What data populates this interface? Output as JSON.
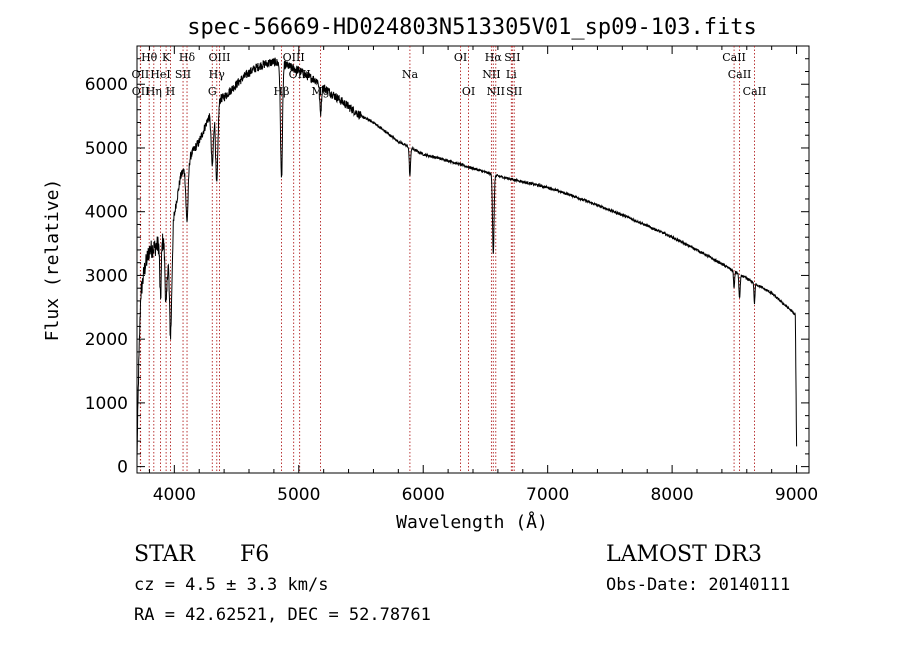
{
  "chart_data": {
    "type": "line",
    "title": "spec-56669-HD024803N513305V01_sp09-103.fits",
    "xlabel": "Wavelength (Å)",
    "ylabel": "Flux (relative)",
    "xlim": [
      3700,
      9100
    ],
    "ylim": [
      -100,
      6600
    ],
    "xticks": [
      4000,
      5000,
      6000,
      7000,
      8000,
      9000
    ],
    "xtick_labels": [
      "4000",
      "5000",
      "6000",
      "7000",
      "8000",
      "9000"
    ],
    "yticks": [
      0,
      1000,
      2000,
      3000,
      4000,
      5000,
      6000
    ],
    "ytick_labels": [
      "0",
      "1000",
      "2000",
      "3000",
      "4000",
      "5000",
      "6000"
    ],
    "grid": false,
    "continuum": {
      "x": [
        3700,
        3712,
        3730,
        3760,
        3800,
        3850,
        3900,
        3950,
        4000,
        4050,
        4100,
        4150,
        4200,
        4250,
        4300,
        4350,
        4400,
        4450,
        4500,
        4550,
        4600,
        4650,
        4700,
        4750,
        4800,
        4850,
        4900,
        4950,
        5000,
        5050,
        5100,
        5150,
        5200,
        5300,
        5400,
        5500,
        5600,
        5700,
        5800,
        5900,
        6000,
        6200,
        6400,
        6600,
        6800,
        7000,
        7200,
        7400,
        7600,
        7800,
        8000,
        8200,
        8400,
        8600,
        8800,
        8950,
        8990,
        9000
      ],
      "flux": [
        100,
        1400,
        2700,
        3100,
        3400,
        3450,
        3550,
        3500,
        3950,
        4550,
        4750,
        4950,
        5100,
        5350,
        5600,
        5750,
        5800,
        5900,
        6000,
        6100,
        6180,
        6250,
        6300,
        6330,
        6350,
        6330,
        6300,
        6250,
        6220,
        6150,
        6100,
        6050,
        5950,
        5800,
        5650,
        5500,
        5400,
        5250,
        5100,
        5000,
        4900,
        4800,
        4680,
        4560,
        4470,
        4380,
        4250,
        4100,
        3950,
        3780,
        3600,
        3400,
        3180,
        2950,
        2720,
        2460,
        2380,
        300
      ]
    },
    "absorption": [
      {
        "name": "H-epsilon/CaII H",
        "center": 3970,
        "depth": 1600,
        "width": 10
      },
      {
        "name": "CaII K",
        "center": 3934,
        "depth": 1000,
        "width": 8
      },
      {
        "name": "H8",
        "center": 3889,
        "depth": 900,
        "width": 6
      },
      {
        "name": "H-delta",
        "center": 4102,
        "depth": 900,
        "width": 9
      },
      {
        "name": "G band",
        "center": 4305,
        "depth": 900,
        "width": 9
      },
      {
        "name": "H-gamma",
        "center": 4341,
        "depth": 1300,
        "width": 9
      },
      {
        "name": "H-beta",
        "center": 4861,
        "depth": 1800,
        "width": 8
      },
      {
        "name": "Mg b",
        "center": 5175,
        "depth": 450,
        "width": 7
      },
      {
        "name": "Na D",
        "center": 5893,
        "depth": 450,
        "width": 5
      },
      {
        "name": "H-alpha",
        "center": 6563,
        "depth": 1250,
        "width": 6
      },
      {
        "name": "CaII 8498",
        "center": 8498,
        "depth": 280,
        "width": 4
      },
      {
        "name": "CaII 8542",
        "center": 8542,
        "depth": 380,
        "width": 5
      },
      {
        "name": "CaII 8662",
        "center": 8662,
        "depth": 320,
        "width": 4
      }
    ],
    "line_markers": [
      {
        "label": "Hθ",
        "x": 3798,
        "row": 0
      },
      {
        "label": "OII",
        "x": 3727,
        "row": 1
      },
      {
        "label": "OII",
        "x": 3729,
        "row": 2
      },
      {
        "label": "Hη",
        "x": 3835,
        "row": 2
      },
      {
        "label": "K",
        "x": 3934,
        "row": 0
      },
      {
        "label": "HeI",
        "x": 3889,
        "row": 1
      },
      {
        "label": "H",
        "x": 3969,
        "row": 2
      },
      {
        "label": "SII",
        "x": 4070,
        "row": 1
      },
      {
        "label": "Hδ",
        "x": 4102,
        "row": 0
      },
      {
        "label": "OIII",
        "x": 4363,
        "row": 0
      },
      {
        "label": "Hγ",
        "x": 4341,
        "row": 1
      },
      {
        "label": "G",
        "x": 4305,
        "row": 2
      },
      {
        "label": "Hβ",
        "x": 4861,
        "row": 2
      },
      {
        "label": "OIII",
        "x": 4959,
        "row": 0
      },
      {
        "label": "OIII",
        "x": 5007,
        "row": 1
      },
      {
        "label": "Mg",
        "x": 5175,
        "row": 2
      },
      {
        "label": "Na",
        "x": 5893,
        "row": 1
      },
      {
        "label": "OI",
        "x": 6300,
        "row": 0
      },
      {
        "label": "OI",
        "x": 6364,
        "row": 2
      },
      {
        "label": "Hα",
        "x": 6563,
        "row": 0
      },
      {
        "label": "NII",
        "x": 6548,
        "row": 1
      },
      {
        "label": "NII",
        "x": 6583,
        "row": 2
      },
      {
        "label": "SII",
        "x": 6716,
        "row": 0
      },
      {
        "label": "Li",
        "x": 6708,
        "row": 1
      },
      {
        "label": "SII",
        "x": 6731,
        "row": 2
      },
      {
        "label": "CaII",
        "x": 8498,
        "row": 0
      },
      {
        "label": "CaII",
        "x": 8542,
        "row": 1
      },
      {
        "label": "CaII",
        "x": 8662,
        "row": 2
      }
    ]
  },
  "info": {
    "object_class": "STAR",
    "subclass": "F6",
    "survey": "LAMOST DR3",
    "velocity": "cz = 4.5 ± 3.3 km/s",
    "obs_date": "Obs-Date: 20140111",
    "coordinates": "RA =  42.62521, DEC =  52.78761"
  },
  "colors": {
    "spectrum": "#000000",
    "marker": "#b22222",
    "axis": "#000000",
    "background": "#ffffff"
  }
}
